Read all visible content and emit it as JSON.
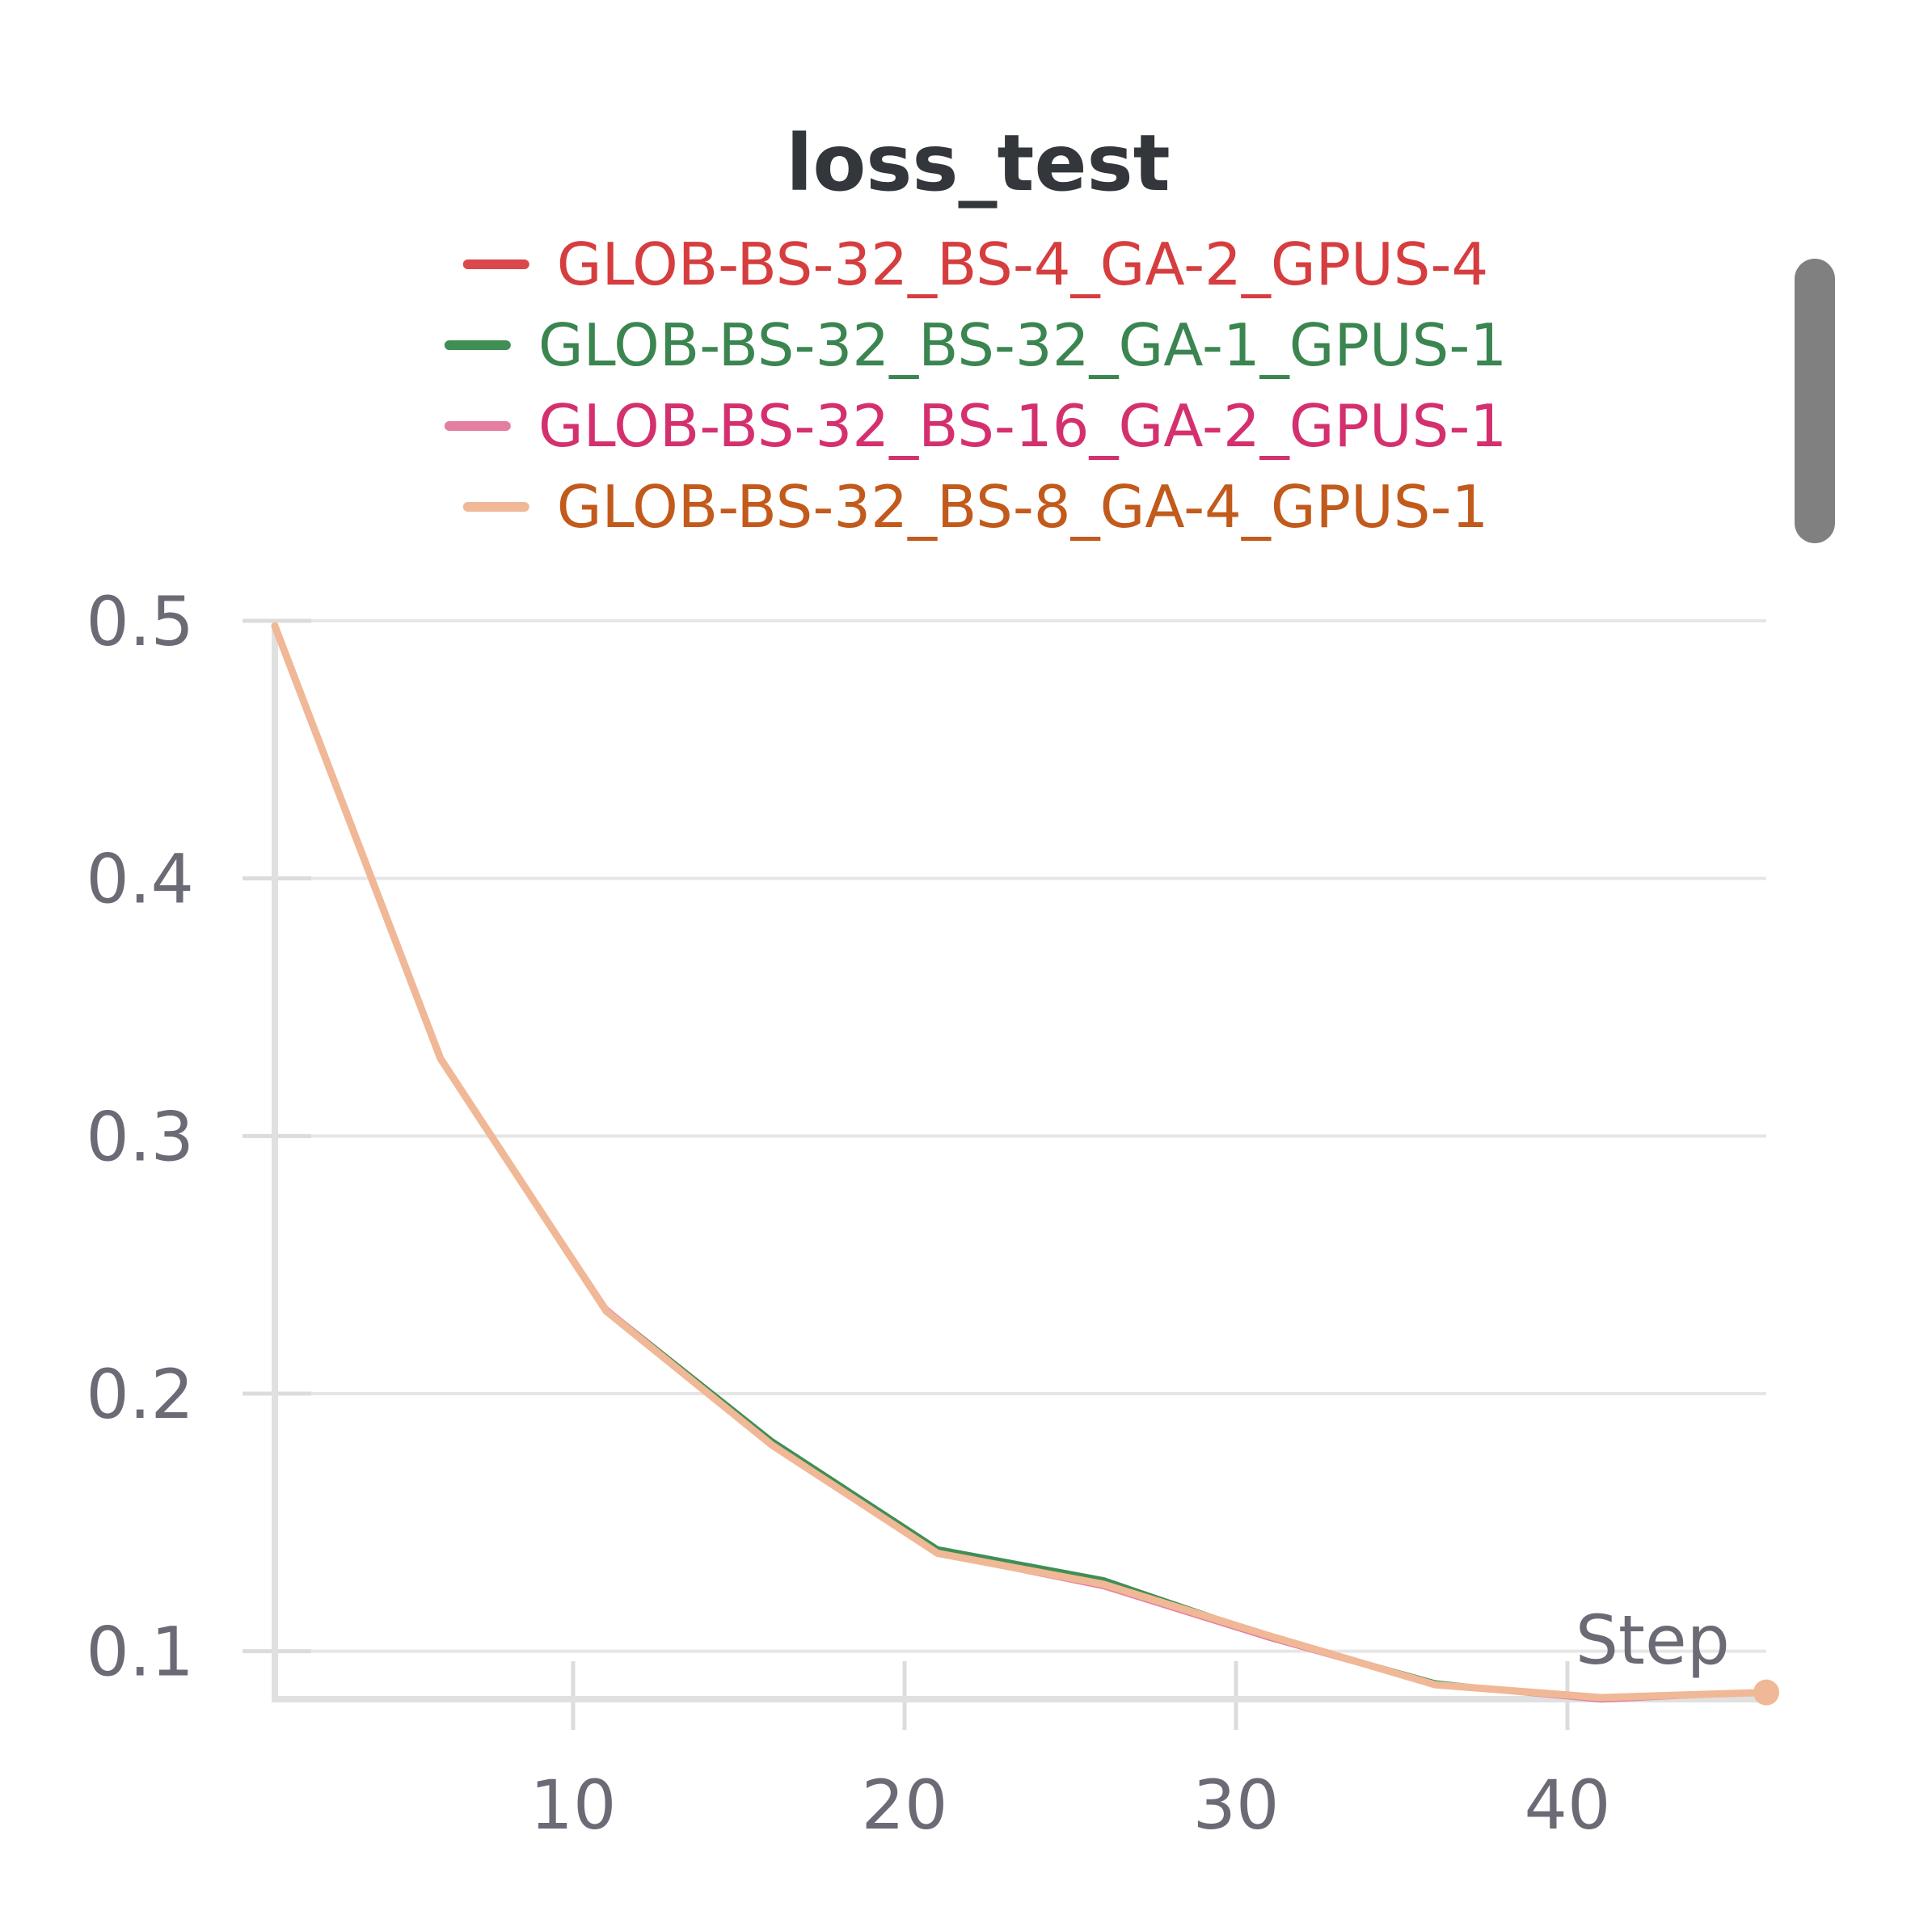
{
  "chart_data": {
    "type": "line",
    "title": "loss_test",
    "xlabel": "Step",
    "ylabel": "",
    "xlim": [
      1,
      46
    ],
    "ylim": [
      0.082,
      0.5
    ],
    "grid": true,
    "legend_position": "top",
    "x_ticks": [
      "10",
      "20",
      "30",
      "40"
    ],
    "y_ticks": [
      "0.1",
      "0.2",
      "0.3",
      "0.4",
      "0.5"
    ],
    "x": [
      1,
      6,
      11,
      16,
      21,
      26,
      31,
      36,
      41,
      46
    ],
    "series": [
      {
        "name": "GLOB-BS-32_BS-4_GA-2_GPUS-4",
        "color": "#d9494b",
        "text_color": "#d63d3f",
        "values": [
          0.498,
          0.33,
          0.233,
          0.18,
          0.138,
          0.125,
          0.105,
          0.087,
          0.081,
          0.084
        ]
      },
      {
        "name": "GLOB-BS-32_BS-32_GA-1_GPUS-1",
        "color": "#3f8f55",
        "text_color": "#3a8550",
        "values": [
          0.498,
          0.33,
          0.233,
          0.182,
          0.14,
          0.128,
          0.106,
          0.088,
          0.081,
          0.084
        ]
      },
      {
        "name": "GLOB-BS-32_BS-16_GA-2_GPUS-1",
        "color": "#e57fa1",
        "text_color": "#d4306f",
        "values": [
          0.498,
          0.33,
          0.233,
          0.18,
          0.138,
          0.125,
          0.105,
          0.087,
          0.081,
          0.084
        ]
      },
      {
        "name": "GLOB-BS-32_BS-8_GA-4_GPUS-1",
        "color": "#f0b896",
        "text_color": "#c25a1c",
        "values": [
          0.498,
          0.33,
          0.232,
          0.18,
          0.138,
          0.126,
          0.106,
          0.087,
          0.082,
          0.084
        ]
      }
    ]
  }
}
